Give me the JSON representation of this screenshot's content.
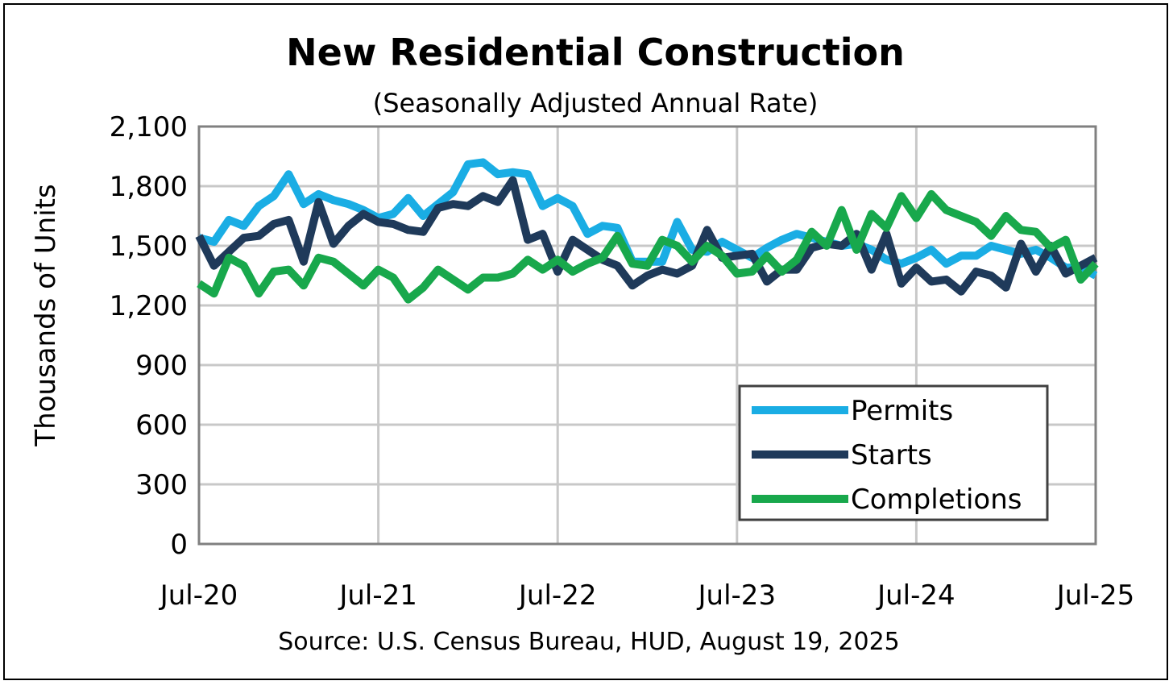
{
  "chart_data": {
    "type": "line",
    "title": "New Residential Construction",
    "subtitle": "(Seasonally Adjusted Annual Rate)",
    "ylabel": "Thousands of Units",
    "source": "Source:  U.S. Census Bureau, HUD, August 19, 2025",
    "ylim": [
      0,
      2100
    ],
    "yticks": [
      0,
      300,
      600,
      900,
      1200,
      1500,
      1800,
      2100
    ],
    "ytick_labels": [
      "0",
      "300",
      "600",
      "900",
      "1,200",
      "1,500",
      "1,800",
      "2,100"
    ],
    "xticks": [
      "Jul-20",
      "Jul-21",
      "Jul-22",
      "Jul-23",
      "Jul-24",
      "Jul-25"
    ],
    "x": [
      "Jul-20",
      "Aug-20",
      "Sep-20",
      "Oct-20",
      "Nov-20",
      "Dec-20",
      "Jan-21",
      "Feb-21",
      "Mar-21",
      "Apr-21",
      "May-21",
      "Jun-21",
      "Jul-21",
      "Aug-21",
      "Sep-21",
      "Oct-21",
      "Nov-21",
      "Dec-21",
      "Jan-22",
      "Feb-22",
      "Mar-22",
      "Apr-22",
      "May-22",
      "Jun-22",
      "Jul-22",
      "Aug-22",
      "Sep-22",
      "Oct-22",
      "Nov-22",
      "Dec-22",
      "Jan-23",
      "Feb-23",
      "Mar-23",
      "Apr-23",
      "May-23",
      "Jun-23",
      "Jul-23",
      "Aug-23",
      "Sep-23",
      "Oct-23",
      "Nov-23",
      "Dec-23",
      "Jan-24",
      "Feb-24",
      "Mar-24",
      "Apr-24",
      "May-24",
      "Jun-24",
      "Jul-24",
      "Aug-24",
      "Sep-24",
      "Oct-24",
      "Nov-24",
      "Dec-24",
      "Jan-25",
      "Feb-25",
      "Mar-25",
      "Apr-25",
      "May-25",
      "Jun-25",
      "Jul-25"
    ],
    "grid": true,
    "legend_position": "bottom-right",
    "series": [
      {
        "name": "Permits",
        "color": "#1AADE4",
        "values": [
          1540,
          1520,
          1630,
          1600,
          1700,
          1750,
          1860,
          1710,
          1760,
          1730,
          1710,
          1680,
          1640,
          1660,
          1740,
          1650,
          1710,
          1770,
          1910,
          1920,
          1860,
          1870,
          1860,
          1700,
          1740,
          1700,
          1560,
          1600,
          1590,
          1420,
          1420,
          1420,
          1620,
          1480,
          1470,
          1520,
          1480,
          1440,
          1490,
          1530,
          1560,
          1540,
          1520,
          1500,
          1510,
          1480,
          1430,
          1410,
          1440,
          1480,
          1410,
          1450,
          1450,
          1500,
          1480,
          1460,
          1480,
          1440,
          1390,
          1390,
          1350
        ]
      },
      {
        "name": "Starts",
        "color": "#1F3A5A",
        "values": [
          1550,
          1400,
          1470,
          1540,
          1550,
          1610,
          1630,
          1420,
          1720,
          1510,
          1600,
          1660,
          1620,
          1610,
          1580,
          1570,
          1690,
          1710,
          1700,
          1750,
          1720,
          1830,
          1530,
          1560,
          1370,
          1530,
          1480,
          1430,
          1400,
          1300,
          1350,
          1380,
          1360,
          1400,
          1580,
          1440,
          1450,
          1460,
          1320,
          1380,
          1380,
          1490,
          1510,
          1500,
          1560,
          1380,
          1560,
          1310,
          1390,
          1320,
          1330,
          1270,
          1370,
          1350,
          1290,
          1510,
          1370,
          1500,
          1360,
          1400,
          1440
        ]
      },
      {
        "name": "Completions",
        "color": "#18A84C",
        "values": [
          1310,
          1260,
          1440,
          1400,
          1260,
          1370,
          1380,
          1300,
          1440,
          1420,
          1360,
          1300,
          1380,
          1340,
          1230,
          1290,
          1380,
          1330,
          1280,
          1340,
          1340,
          1360,
          1430,
          1380,
          1430,
          1370,
          1410,
          1440,
          1550,
          1410,
          1400,
          1530,
          1500,
          1420,
          1500,
          1450,
          1360,
          1370,
          1450,
          1370,
          1430,
          1570,
          1500,
          1680,
          1480,
          1660,
          1590,
          1750,
          1640,
          1760,
          1680,
          1650,
          1620,
          1550,
          1650,
          1580,
          1570,
          1490,
          1530,
          1330,
          1410
        ]
      }
    ]
  }
}
